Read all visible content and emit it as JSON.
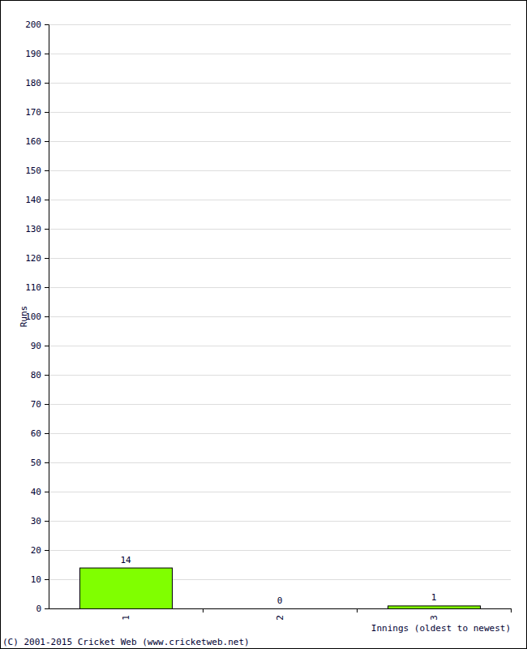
{
  "chart_data": {
    "type": "bar",
    "categories": [
      "1",
      "2",
      "3"
    ],
    "values": [
      14,
      0,
      1
    ],
    "color": "#80ff00",
    "x_label": "Innings (oldest to newest)",
    "y_label": "Runs",
    "annotations": [
      "(C) 2001-2015 Cricket Web (www.cricketweb.net)"
    ],
    "ylim": [
      0,
      200
    ],
    "yticks": [
      0,
      10,
      20,
      30,
      40,
      50,
      60,
      70,
      80,
      90,
      100,
      110,
      120,
      130,
      140,
      150,
      160,
      170,
      180,
      190,
      200
    ],
    "grid": true,
    "data_labels": true
  }
}
